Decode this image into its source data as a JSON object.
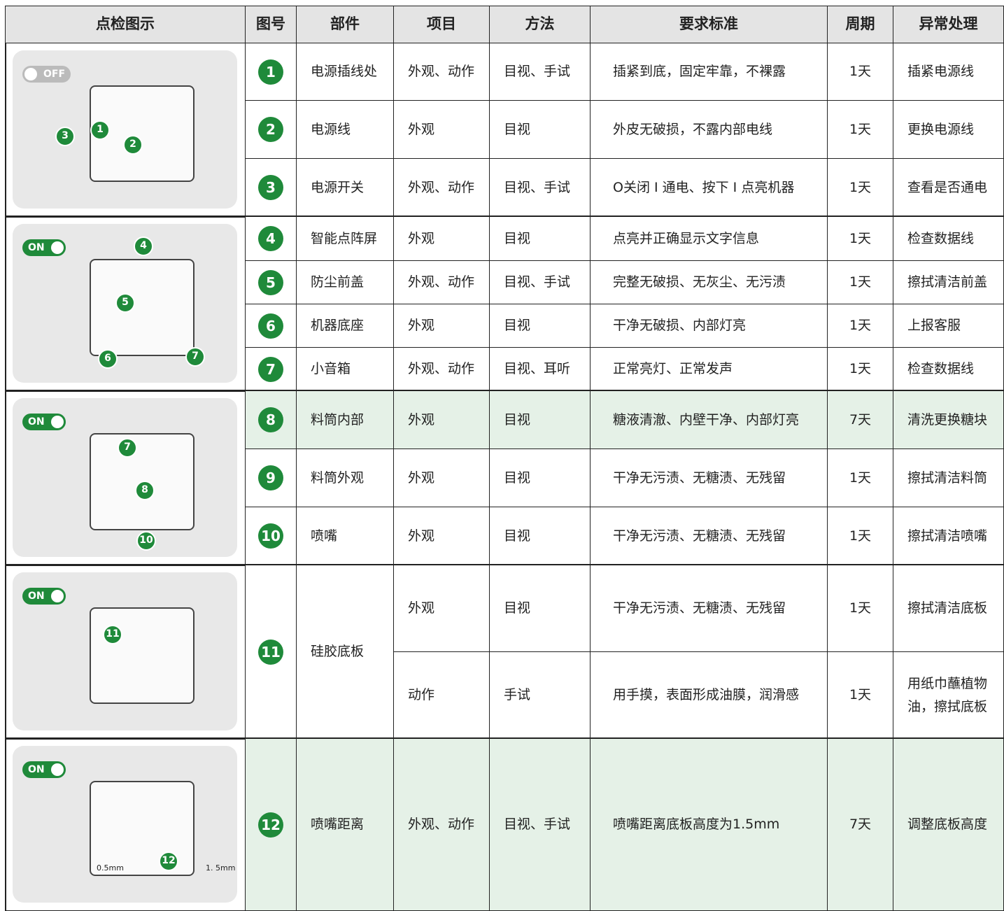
{
  "header": [
    "点检图示",
    "图号",
    "部件",
    "项目",
    "方法",
    "要求标准",
    "周期",
    "异常处理"
  ],
  "groups": [
    {
      "image": {
        "toggle": "OFF",
        "markers": [
          "3",
          "1",
          "2"
        ]
      },
      "rows": [
        {
          "no": "1",
          "part": "电源插线处",
          "checks": [
            {
              "item": "外观、动作",
              "method": "目视、手试",
              "standard": "插紧到底，固定牢靠，不裸露",
              "cycle": "1天",
              "handling": "插紧电源线"
            }
          ]
        },
        {
          "no": "2",
          "part": "电源线",
          "checks": [
            {
              "item": "外观",
              "method": "目视",
              "standard": "外皮无破损，不露内部电线",
              "cycle": "1天",
              "handling": "更换电源线"
            }
          ]
        },
        {
          "no": "3",
          "part": "电源开关",
          "checks": [
            {
              "item": "外观、动作",
              "method": "目视、手试",
              "standard": "O关闭 I 通电、按下 I 点亮机器",
              "cycle": "1天",
              "handling": "查看是否通电"
            }
          ]
        }
      ]
    },
    {
      "image": {
        "toggle": "ON",
        "markers": [
          "4",
          "5",
          "6",
          "7"
        ]
      },
      "rows": [
        {
          "no": "4",
          "part": "智能点阵屏",
          "checks": [
            {
              "item": "外观",
              "method": "目视",
              "standard": "点亮并正确显示文字信息",
              "cycle": "1天",
              "handling": "检查数据线"
            }
          ]
        },
        {
          "no": "5",
          "part": "防尘前盖",
          "checks": [
            {
              "item": "外观、动作",
              "method": "目视、手试",
              "standard": "完整无破损、无灰尘、无污渍",
              "cycle": "1天",
              "handling": "擦拭清洁前盖"
            }
          ]
        },
        {
          "no": "6",
          "part": "机器底座",
          "checks": [
            {
              "item": "外观",
              "method": "目视",
              "standard": "干净无破损、内部灯亮",
              "cycle": "1天",
              "handling": "上报客服"
            }
          ]
        },
        {
          "no": "7",
          "part": "小音箱",
          "checks": [
            {
              "item": "外观、动作",
              "method": "目视、耳听",
              "standard": "正常亮灯、正常发声",
              "cycle": "1天",
              "handling": "检查数据线"
            }
          ]
        }
      ]
    },
    {
      "image": {
        "toggle": "ON",
        "markers": [
          "7",
          "8",
          "10"
        ]
      },
      "rows": [
        {
          "no": "8",
          "part": "料筒内部",
          "highlight": true,
          "checks": [
            {
              "item": "外观",
              "method": "目视",
              "standard": "糖液清澈、内壁干净、内部灯亮",
              "cycle": "7天",
              "handling": "清洗更换糖块"
            }
          ]
        },
        {
          "no": "9",
          "part": "料筒外观",
          "checks": [
            {
              "item": "外观",
              "method": "目视",
              "standard": "干净无污渍、无糖渍、无残留",
              "cycle": "1天",
              "handling": "擦拭清洁料筒"
            }
          ]
        },
        {
          "no": "10",
          "part": "喷嘴",
          "checks": [
            {
              "item": "外观",
              "method": "目视",
              "standard": "干净无污渍、无糖渍、无残留",
              "cycle": "1天",
              "handling": "擦拭清洁喷嘴"
            }
          ]
        }
      ]
    },
    {
      "image": {
        "toggle": "ON",
        "markers": [
          "11"
        ]
      },
      "rows": [
        {
          "no": "11",
          "part": "硅胶底板",
          "checks": [
            {
              "item": "外观",
              "method": "目视",
              "standard": "干净无污渍、无糖渍、无残留",
              "cycle": "1天",
              "handling": "擦拭清洁底板"
            },
            {
              "item": "动作",
              "method": "手试",
              "standard": "用手摸，表面形成油膜，润滑感",
              "cycle": "1天",
              "handling": "用纸巾蘸植物油，擦拭底板"
            }
          ]
        }
      ]
    },
    {
      "image": {
        "toggle": "ON",
        "markers": [
          "12"
        ],
        "labels": [
          "0.5mm",
          "1. 5mm"
        ]
      },
      "rows": [
        {
          "no": "12",
          "part": "喷嘴距离",
          "highlight": true,
          "checks": [
            {
              "item": "外观、动作",
              "method": "目视、手试",
              "standard": "喷嘴距离底板高度为1.5mm",
              "cycle": "7天",
              "handling": "调整底板高度"
            }
          ]
        }
      ]
    }
  ]
}
